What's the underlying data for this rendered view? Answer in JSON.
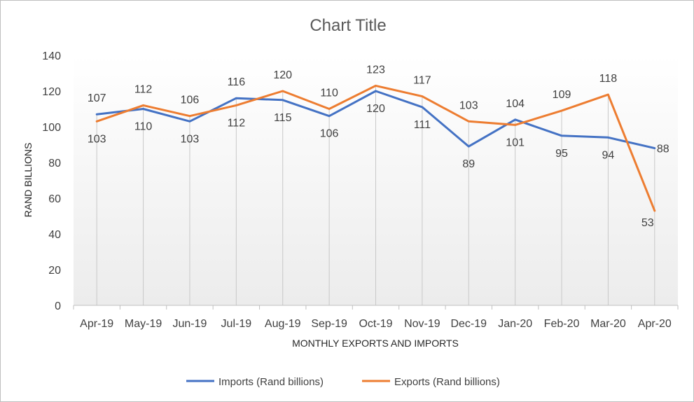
{
  "chart_data": {
    "type": "line",
    "title": "Chart Title",
    "xlabel": "MONTHLY EXPORTS AND IMPORTS",
    "ylabel": "RAND BILLIONS",
    "categories": [
      "Apr-19",
      "May-19",
      "Jun-19",
      "Jul-19",
      "Aug-19",
      "Sep-19",
      "Oct-19",
      "Nov-19",
      "Dec-19",
      "Jan-20",
      "Feb-20",
      "Mar-20",
      "Apr-20"
    ],
    "ylim": [
      0,
      140
    ],
    "yticks": [
      0,
      20,
      40,
      60,
      80,
      100,
      120,
      140
    ],
    "grid": false,
    "legend_position": "bottom",
    "series": [
      {
        "name": "Imports (Rand billions)",
        "color": "#4472c4",
        "values": [
          107,
          110,
          103,
          116,
          115,
          106,
          120,
          111,
          89,
          104,
          95,
          94,
          88
        ]
      },
      {
        "name": "Exports (Rand billions)",
        "color": "#ed7d31",
        "values": [
          103,
          112,
          106,
          112,
          120,
          110,
          123,
          117,
          103,
          101,
          109,
          118,
          53
        ]
      }
    ]
  }
}
